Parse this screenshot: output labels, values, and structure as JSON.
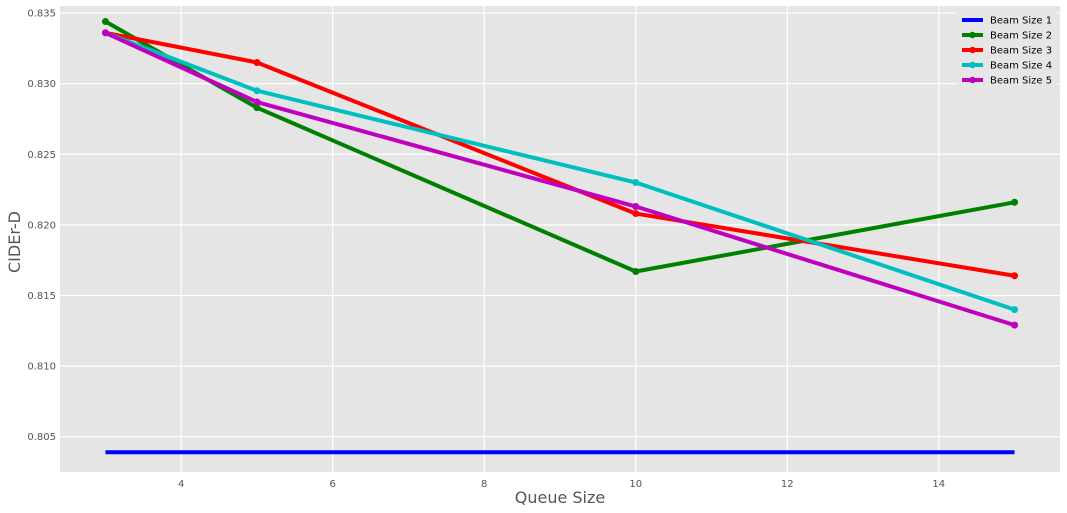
{
  "chart_data": {
    "type": "line",
    "xlabel": "Queue Size",
    "ylabel": "CIDEr-D",
    "xlim": [
      2.4,
      15.6
    ],
    "ylim": [
      0.8025,
      0.8355
    ],
    "xticks": [
      4,
      6,
      8,
      10,
      12,
      14
    ],
    "xtick_labels": [
      "4",
      "6",
      "8",
      "10",
      "12",
      "14"
    ],
    "yticks": [
      0.805,
      0.81,
      0.815,
      0.82,
      0.825,
      0.83,
      0.835
    ],
    "ytick_labels": [
      "0.805",
      "0.810",
      "0.815",
      "0.820",
      "0.825",
      "0.830",
      "0.835"
    ],
    "grid": true,
    "legend_position": "top-right",
    "x": [
      3,
      5,
      10,
      15
    ],
    "series": [
      {
        "name": "Beam Size 1",
        "color": "#0000ff",
        "markers": false,
        "values": [
          0.8039,
          0.8039,
          0.8039,
          0.8039
        ]
      },
      {
        "name": "Beam Size 2",
        "color": "#008000",
        "markers": true,
        "values": [
          0.8344,
          0.8283,
          0.8167,
          0.8216
        ]
      },
      {
        "name": "Beam Size 3",
        "color": "#ff0000",
        "markers": true,
        "values": [
          0.8336,
          0.8315,
          0.8208,
          0.8164
        ]
      },
      {
        "name": "Beam Size 4",
        "color": "#00bfbf",
        "markers": true,
        "values": [
          0.8336,
          0.8295,
          0.823,
          0.814
        ]
      },
      {
        "name": "Beam Size 5",
        "color": "#bf00bf",
        "markers": true,
        "values": [
          0.8336,
          0.8287,
          0.8213,
          0.8129
        ]
      }
    ]
  }
}
